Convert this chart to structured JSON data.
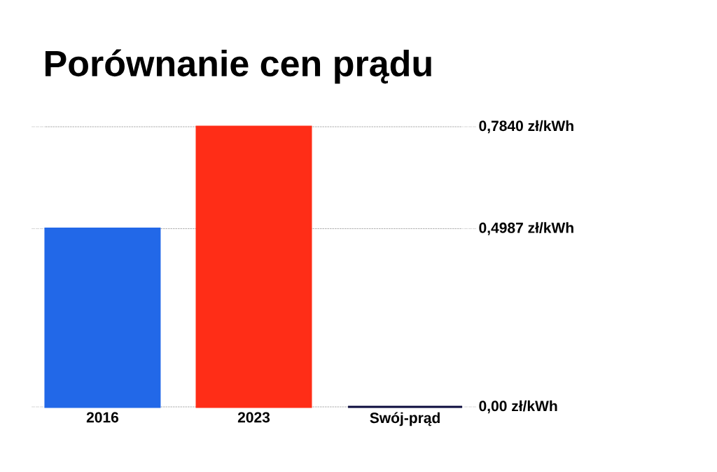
{
  "chart_data": {
    "type": "bar",
    "title": "Porównanie cen prądu",
    "categories": [
      "2016",
      "2023",
      "Swój-prąd"
    ],
    "values": [
      0.4987,
      0.784,
      0.0
    ],
    "colors": [
      "#2268e8",
      "#ff2d17",
      "#0a0a3c"
    ],
    "ylim": [
      0,
      0.784
    ],
    "yticks": [
      {
        "value": 0,
        "label": "0,00 zł/kWh"
      },
      {
        "value": 0.4987,
        "label": "0,4987 zł/kWh"
      },
      {
        "value": 0.784,
        "label": "0,7840 zł/kWh"
      }
    ],
    "grid": "y"
  }
}
